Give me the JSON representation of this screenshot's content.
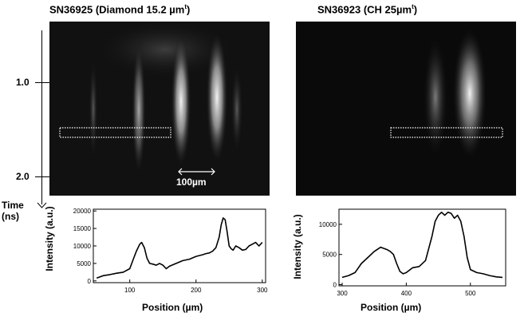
{
  "left": {
    "title": "SN36925   (Diamond 15.2 µm",
    "title_sup": "t",
    "title_end": ")",
    "scale_label": "100µm"
  },
  "right": {
    "title": "SN36923  (CH 25µm",
    "title_sup": "t",
    "title_end": ")"
  },
  "time_axis": {
    "label_line1": "Time",
    "label_line2": "(ns)",
    "ticks": [
      "1.0",
      "2.0"
    ]
  },
  "chart_data": [
    {
      "type": "line",
      "xlabel": "Position (µm)",
      "ylabel": "Intensity (a.u.)",
      "xlim": [
        45,
        305
      ],
      "ylim": [
        -500,
        20500
      ],
      "xticks": [
        100,
        200,
        300
      ],
      "yticks": [
        0,
        5000,
        10000,
        15000,
        20000
      ],
      "series": [
        {
          "x": [
            50,
            60,
            70,
            80,
            90,
            100,
            105,
            110,
            115,
            118,
            122,
            126,
            130,
            135,
            140,
            145,
            150,
            155,
            160,
            170,
            180,
            190,
            200,
            210,
            215,
            220,
            225,
            230,
            235,
            238,
            241,
            244,
            247,
            250,
            253,
            256,
            260,
            265,
            270,
            275,
            280,
            285,
            290,
            295,
            300
          ],
          "y": [
            800,
            1500,
            1800,
            2200,
            2500,
            3500,
            6000,
            8500,
            10500,
            11000,
            9500,
            6500,
            5000,
            4800,
            4500,
            5000,
            4500,
            3500,
            4200,
            5000,
            5800,
            6200,
            7000,
            7500,
            7800,
            8000,
            8500,
            9500,
            12500,
            16000,
            18000,
            17500,
            14000,
            10000,
            9200,
            8800,
            10000,
            9500,
            8800,
            9000,
            10000,
            10500,
            11000,
            10000,
            11000
          ]
        }
      ]
    },
    {
      "type": "line",
      "xlabel": "Position (µm)",
      "ylabel": "Intensity (a.u.)",
      "xlim": [
        295,
        555
      ],
      "ylim": [
        -200,
        12500
      ],
      "xticks": [
        300,
        400,
        500
      ],
      "yticks": [
        0,
        5000,
        10000
      ],
      "series": [
        {
          "x": [
            300,
            310,
            320,
            330,
            340,
            350,
            360,
            365,
            370,
            375,
            380,
            385,
            390,
            395,
            400,
            410,
            420,
            430,
            440,
            445,
            450,
            455,
            460,
            465,
            470,
            475,
            480,
            485,
            490,
            495,
            500,
            510,
            520,
            530,
            540,
            550
          ],
          "y": [
            1200,
            1500,
            2000,
            3500,
            4500,
            5500,
            6200,
            6000,
            5800,
            5500,
            5000,
            3500,
            2200,
            1800,
            2000,
            2800,
            3000,
            4000,
            8000,
            10500,
            11500,
            12000,
            11500,
            12000,
            11800,
            11000,
            11500,
            10500,
            8000,
            4500,
            2500,
            2000,
            1800,
            1500,
            1300,
            1200
          ]
        }
      ]
    }
  ]
}
